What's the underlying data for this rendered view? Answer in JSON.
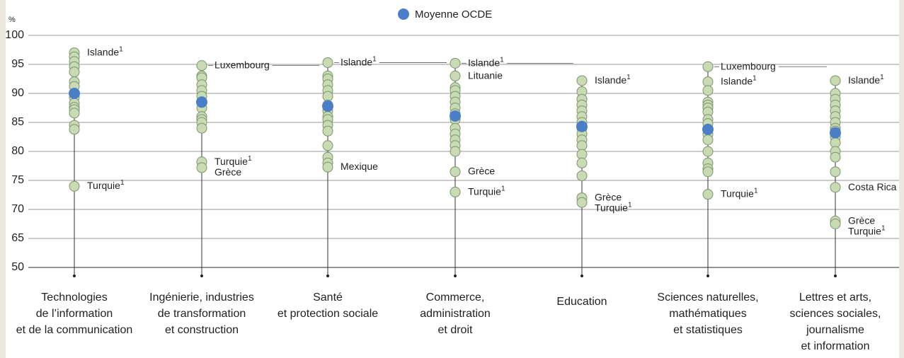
{
  "chart_data": {
    "type": "dot",
    "y_label": "%",
    "legend": {
      "name": "Moyenne OCDE",
      "color": "#4a7fc7"
    },
    "point_color": "#c9dbb3",
    "yticks": [
      50,
      65,
      70,
      75,
      80,
      85,
      90,
      95,
      100
    ],
    "grid": true,
    "categories": [
      [
        "Technologies",
        "de l’information",
        "et de la communication"
      ],
      [
        "Ingénierie, industries",
        "de transformation",
        "et construction"
      ],
      [
        "Santé",
        "et protection sociale"
      ],
      [
        "Commerce,",
        "administration",
        "et droit"
      ],
      [
        "Education"
      ],
      [
        "Sciences naturelles,",
        "mathématiques",
        "et statistiques"
      ],
      [
        "Lettres et arts,",
        "sciences sociales,",
        "journalisme",
        "et information"
      ]
    ],
    "means": [
      90,
      88.5,
      87.8,
      86.1,
      84.3,
      83.8,
      83.2
    ],
    "points": [
      [
        97,
        96.3,
        95.5,
        94.6,
        93.7,
        92,
        91.2,
        90,
        89.3,
        88.3,
        87.6,
        87.2,
        86.6,
        84.5,
        83.8,
        74
      ],
      [
        94.8,
        93,
        92.7,
        91.5,
        90.5,
        89.5,
        88.5,
        87.5,
        86,
        85.5,
        85,
        84,
        78.2,
        77.2
      ],
      [
        95.3,
        93,
        92.5,
        91.5,
        90.5,
        89.5,
        88,
        87,
        86,
        85.5,
        84.5,
        83.5,
        81,
        79,
        78,
        77.3
      ],
      [
        95.2,
        93,
        91,
        90.5,
        89.5,
        88.5,
        87.5,
        86.5,
        85.5,
        84,
        83,
        82,
        81,
        80,
        76.5,
        73
      ],
      [
        92.2,
        90.3,
        89,
        88,
        87,
        86,
        85,
        84,
        83,
        82,
        81,
        79.5,
        78,
        75.8,
        72,
        71.2
      ],
      [
        94.6,
        92,
        90.5,
        88.5,
        88,
        87.5,
        86.8,
        85.5,
        84.8,
        83,
        82,
        80,
        78,
        77,
        76.5,
        72.6
      ],
      [
        92.2,
        90,
        89,
        88,
        87,
        86,
        85,
        84,
        83.5,
        82.5,
        81.5,
        80,
        79,
        76.5,
        73.8,
        68,
        67.5
      ]
    ],
    "annotations": [
      [
        {
          "text": "Islande",
          "note": "1",
          "value": 97
        },
        {
          "text": "Turquie",
          "note": "1",
          "value": 74
        }
      ],
      [
        {
          "text": "Luxembourg",
          "value": 94.8,
          "leader": true
        },
        {
          "text": "Turquie",
          "note": "1",
          "value": 78.2
        },
        {
          "text": "Grèce",
          "value": 77.2
        }
      ],
      [
        {
          "text": "Islande",
          "note": "1",
          "value": 95.3,
          "leader": true
        },
        {
          "text": "Mexique",
          "value": 77.3
        }
      ],
      [
        {
          "text": "Islande",
          "note": "1",
          "value": 95.2,
          "leader": true
        },
        {
          "text": "Lituanie",
          "value": 93
        },
        {
          "text": "Grèce",
          "value": 76.5
        },
        {
          "text": "Turquie",
          "note": "1",
          "value": 73
        }
      ],
      [
        {
          "text": "Islande",
          "note": "1",
          "value": 92.2
        },
        {
          "text": "Grèce",
          "value": 72
        },
        {
          "text": "Turquie",
          "note": "1",
          "value": 71.2
        }
      ],
      [
        {
          "text": "Luxembourg",
          "value": 94.6,
          "leader": true
        },
        {
          "text": "Islande",
          "note": "1",
          "value": 92
        },
        {
          "text": "Turquie",
          "note": "1",
          "value": 72.6
        }
      ],
      [
        {
          "text": "Islande",
          "note": "1",
          "value": 92.2
        },
        {
          "text": "Costa Rica",
          "value": 73.8
        },
        {
          "text": "Grèce",
          "value": 68
        },
        {
          "text": "Turquie",
          "note": "1",
          "value": 67.5
        }
      ]
    ]
  }
}
